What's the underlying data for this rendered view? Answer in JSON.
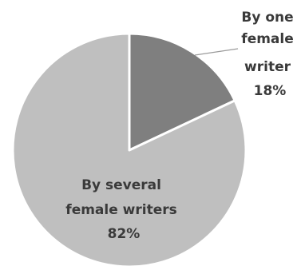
{
  "chart_data": {
    "type": "pie",
    "title": "",
    "slices": [
      {
        "label_lines": [
          "By one",
          "female",
          "writer"
        ],
        "value_label": "18%",
        "value": 18,
        "color": "#7f7f7f"
      },
      {
        "label_lines": [
          "By several",
          "female writers"
        ],
        "value_label": "82%",
        "value": 82,
        "color": "#bfbfbf"
      }
    ],
    "label_color": "#3a3a3a",
    "legend": "none"
  }
}
